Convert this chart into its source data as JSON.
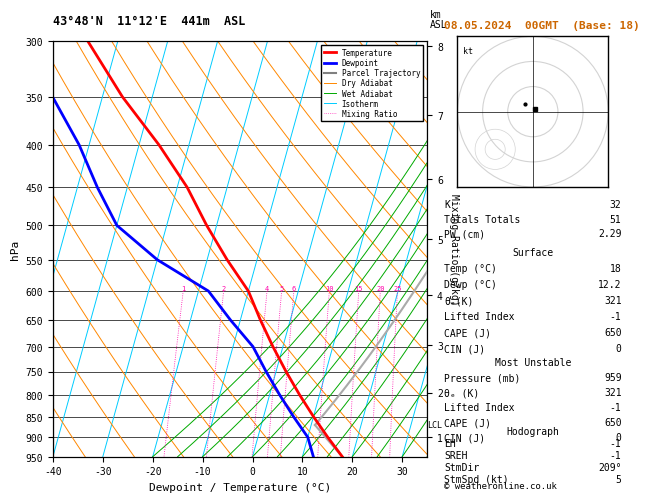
{
  "title_left": "43°48'N  11°12'E  441m  ASL",
  "title_right": "08.05.2024  00GMT  (Base: 18)",
  "xlabel": "Dewpoint / Temperature (°C)",
  "ylabel_left": "hPa",
  "ylabel_right_main": "Mixing Ratio (g/kg)",
  "pressure_levels": [
    300,
    350,
    400,
    450,
    500,
    550,
    600,
    650,
    700,
    750,
    800,
    850,
    900,
    950
  ],
  "pmin": 300,
  "pmax": 950,
  "temp_min": -40,
  "temp_max": 35,
  "temp_ticks": [
    -40,
    -30,
    -20,
    -10,
    0,
    10,
    20,
    30
  ],
  "isotherm_color": "#00ccff",
  "dry_adiabat_color": "#ff8800",
  "wet_adiabat_color": "#00aa00",
  "mixing_ratio_color": "#ff00aa",
  "mixing_ratio_values": [
    1,
    2,
    4,
    5,
    6,
    10,
    15,
    20,
    25
  ],
  "temp_profile_color": "#ff0000",
  "dewp_profile_color": "#0000ff",
  "parcel_color": "#aaaaaa",
  "lcl_pressure": 870,
  "background_color": "#ffffff",
  "stats": {
    "K": 32,
    "Totals_Totals": 51,
    "PW_cm": 2.29,
    "Surface_Temp": 18,
    "Surface_Dewp": 12.2,
    "Surface_theta_e": 321,
    "Surface_LI": -1,
    "Surface_CAPE": 650,
    "Surface_CIN": 0,
    "MU_Pressure": 959,
    "MU_theta_e": 321,
    "MU_LI": -1,
    "MU_CAPE": 650,
    "MU_CIN": 0,
    "EH": -1,
    "SREH": -1,
    "StmDir": 209,
    "StmSpd": 5
  },
  "sounding_pressure": [
    950,
    900,
    850,
    800,
    750,
    700,
    650,
    600,
    550,
    500,
    450,
    400,
    350,
    300
  ],
  "sounding_temp": [
    18,
    14,
    10,
    6,
    2,
    -2,
    -6,
    -10,
    -16,
    -22,
    -28,
    -36,
    -46,
    -56
  ],
  "sounding_dewp": [
    12.2,
    10,
    6,
    2,
    -2,
    -6,
    -12,
    -18,
    -30,
    -40,
    -46,
    -52,
    -60,
    -65
  ],
  "km_ticks": [
    1,
    2,
    3,
    4,
    5,
    6,
    7,
    8
  ],
  "km_pressures": [
    899,
    795,
    697,
    606,
    519,
    440,
    368,
    304
  ],
  "title_right_color": "#cc6600",
  "copyright": "© weatheronline.co.uk"
}
